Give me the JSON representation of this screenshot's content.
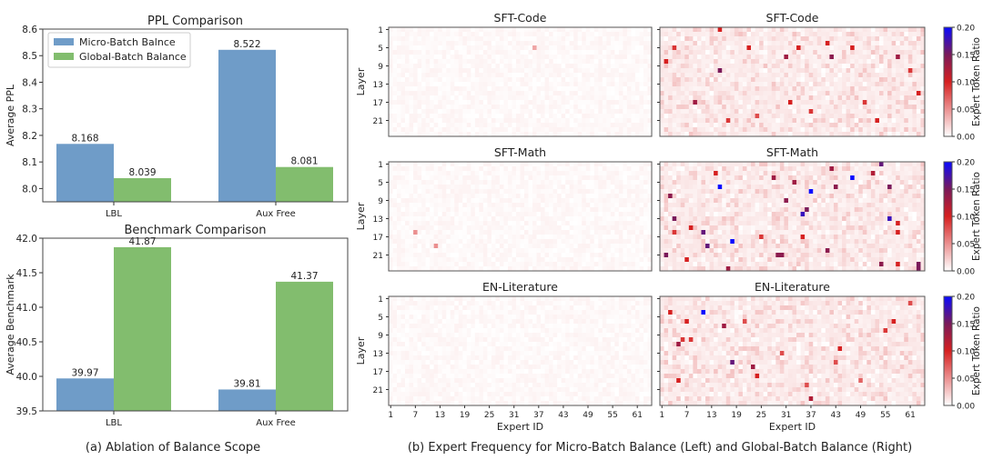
{
  "colors": {
    "micro": "#6f9cc8",
    "global": "#82bd6e",
    "cmap": [
      "#ffffff",
      "#d62020",
      "#7a1a5a",
      "#0a0aff"
    ]
  },
  "captions": {
    "a": "(a) Ablation of Balance Scope",
    "b": "(b) Expert Frequency for Micro-Batch Balance (Left) and Global-Batch Balance (Right)"
  },
  "chart_data": [
    {
      "type": "bar",
      "title": "PPL Comparison",
      "ylabel": "Average PPL",
      "xlabel": "",
      "categories": [
        "LBL",
        "Aux Free"
      ],
      "ylim": [
        7.95,
        8.6
      ],
      "yticks": [
        "8.0",
        "8.1",
        "8.2",
        "8.3",
        "8.4",
        "8.5",
        "8.6"
      ],
      "legend": "top-left",
      "series": [
        {
          "name": "Micro-Batch Balnce",
          "values": [
            8.168,
            8.522
          ],
          "labels": [
            "8.168",
            "8.522"
          ]
        },
        {
          "name": "Global-Batch Balance",
          "values": [
            8.039,
            8.081
          ],
          "labels": [
            "8.039",
            "8.081"
          ]
        }
      ]
    },
    {
      "type": "bar",
      "title": "Benchmark Comparison",
      "ylabel": "Average Benchmark",
      "xlabel": "",
      "categories": [
        "LBL",
        "Aux Free"
      ],
      "ylim": [
        39.5,
        42.0
      ],
      "yticks": [
        "39.5",
        "40.0",
        "40.5",
        "41.0",
        "41.5",
        "42.0"
      ],
      "series": [
        {
          "values": [
            39.97,
            39.81
          ],
          "labels": [
            "39.97",
            "39.81"
          ]
        },
        {
          "values": [
            41.87,
            41.37
          ],
          "labels": [
            "41.87",
            "41.37"
          ]
        }
      ]
    },
    {
      "type": "heatmap",
      "xlabel": "Expert ID",
      "ylabel": "Layer",
      "xticks": [
        "1",
        "7",
        "13",
        "19",
        "25",
        "31",
        "37",
        "43",
        "49",
        "55",
        "61"
      ],
      "yticks": [
        "1",
        "5",
        "9",
        "13",
        "17",
        "21"
      ],
      "n_experts": 64,
      "n_layers": 24,
      "colorbar": {
        "label": "Expert Token Ratio",
        "range": [
          0,
          0.2
        ],
        "ticks": [
          "0.00",
          "0.05",
          "0.10",
          "0.15",
          "0.20"
        ]
      },
      "panels": [
        {
          "title": "SFT-Code",
          "side": "left",
          "hot_cells": [
            [
              36,
              5,
              0.04
            ]
          ]
        },
        {
          "title": "SFT-Code",
          "side": "right",
          "hot_cells": [
            [
              15,
              1,
              0.1
            ],
            [
              15,
              10,
              0.15
            ],
            [
              22,
              5,
              0.1
            ],
            [
              31,
              7,
              0.13
            ],
            [
              32,
              17,
              0.1
            ],
            [
              34,
              5,
              0.1
            ],
            [
              41,
              4,
              0.1
            ],
            [
              42,
              7,
              0.14
            ],
            [
              47,
              5,
              0.1
            ],
            [
              58,
              7,
              0.13
            ],
            [
              61,
              10,
              0.09
            ],
            [
              63,
              15,
              0.1
            ],
            [
              4,
              5,
              0.09
            ],
            [
              2,
              8,
              0.1
            ],
            [
              9,
              17,
              0.13
            ],
            [
              17,
              21,
              0.09
            ],
            [
              50,
              17,
              0.09
            ],
            [
              53,
              21,
              0.1
            ],
            [
              37,
              19,
              0.09
            ],
            [
              24,
              20,
              0.08
            ]
          ]
        },
        {
          "title": "SFT-Math",
          "side": "left",
          "hot_cells": [
            [
              7,
              16,
              0.05
            ],
            [
              12,
              19,
              0.05
            ]
          ]
        },
        {
          "title": "SFT-Math",
          "side": "right",
          "hot_cells": [
            [
              15,
              6,
              0.2
            ],
            [
              47,
              4,
              0.2
            ],
            [
              37,
              7,
              0.2
            ],
            [
              35,
              12,
              0.18
            ],
            [
              36,
              11,
              0.15
            ],
            [
              56,
              13,
              0.18
            ],
            [
              18,
              18,
              0.2
            ],
            [
              12,
              19,
              0.16
            ],
            [
              11,
              16,
              0.16
            ],
            [
              4,
              13,
              0.15
            ],
            [
              3,
              8,
              0.14
            ],
            [
              2,
              21,
              0.15
            ],
            [
              29,
              21,
              0.14
            ],
            [
              30,
              21,
              0.14
            ],
            [
              31,
              9,
              0.14
            ],
            [
              28,
              4,
              0.13
            ],
            [
              54,
              1,
              0.16
            ],
            [
              56,
              6,
              0.15
            ],
            [
              43,
              6,
              0.14
            ],
            [
              42,
              2,
              0.13
            ],
            [
              14,
              3,
              0.1
            ],
            [
              8,
              15,
              0.1
            ],
            [
              4,
              16,
              0.09
            ],
            [
              7,
              22,
              0.1
            ],
            [
              58,
              23,
              0.1
            ],
            [
              63,
              23,
              0.15
            ],
            [
              63,
              24,
              0.15
            ],
            [
              17,
              24,
              0.13
            ],
            [
              54,
              23,
              0.14
            ],
            [
              41,
              20,
              0.14
            ],
            [
              52,
              3,
              0.12
            ],
            [
              58,
              14,
              0.1
            ],
            [
              58,
              16,
              0.1
            ],
            [
              35,
              17,
              0.1
            ],
            [
              25,
              17,
              0.09
            ],
            [
              33,
              5,
              0.13
            ]
          ]
        },
        {
          "title": "EN-Literature",
          "side": "left",
          "hot_cells": []
        },
        {
          "title": "EN-Literature",
          "side": "right",
          "hot_cells": [
            [
              11,
              4,
              0.2
            ],
            [
              3,
              4,
              0.1
            ],
            [
              7,
              6,
              0.1
            ],
            [
              16,
              7,
              0.13
            ],
            [
              21,
              6,
              0.08
            ],
            [
              57,
              6,
              0.1
            ],
            [
              55,
              8,
              0.09
            ],
            [
              5,
              11,
              0.13
            ],
            [
              6,
              10,
              0.09
            ],
            [
              8,
              10,
              0.09
            ],
            [
              18,
              15,
              0.16
            ],
            [
              23,
              16,
              0.13
            ],
            [
              24,
              18,
              0.1
            ],
            [
              5,
              19,
              0.1
            ],
            [
              44,
              12,
              0.1
            ],
            [
              37,
              23,
              0.12
            ],
            [
              30,
              13,
              0.08
            ],
            [
              43,
              15,
              0.08
            ],
            [
              36,
              20,
              0.08
            ],
            [
              61,
              2,
              0.08
            ],
            [
              49,
              19,
              0.07
            ]
          ]
        }
      ]
    }
  ]
}
